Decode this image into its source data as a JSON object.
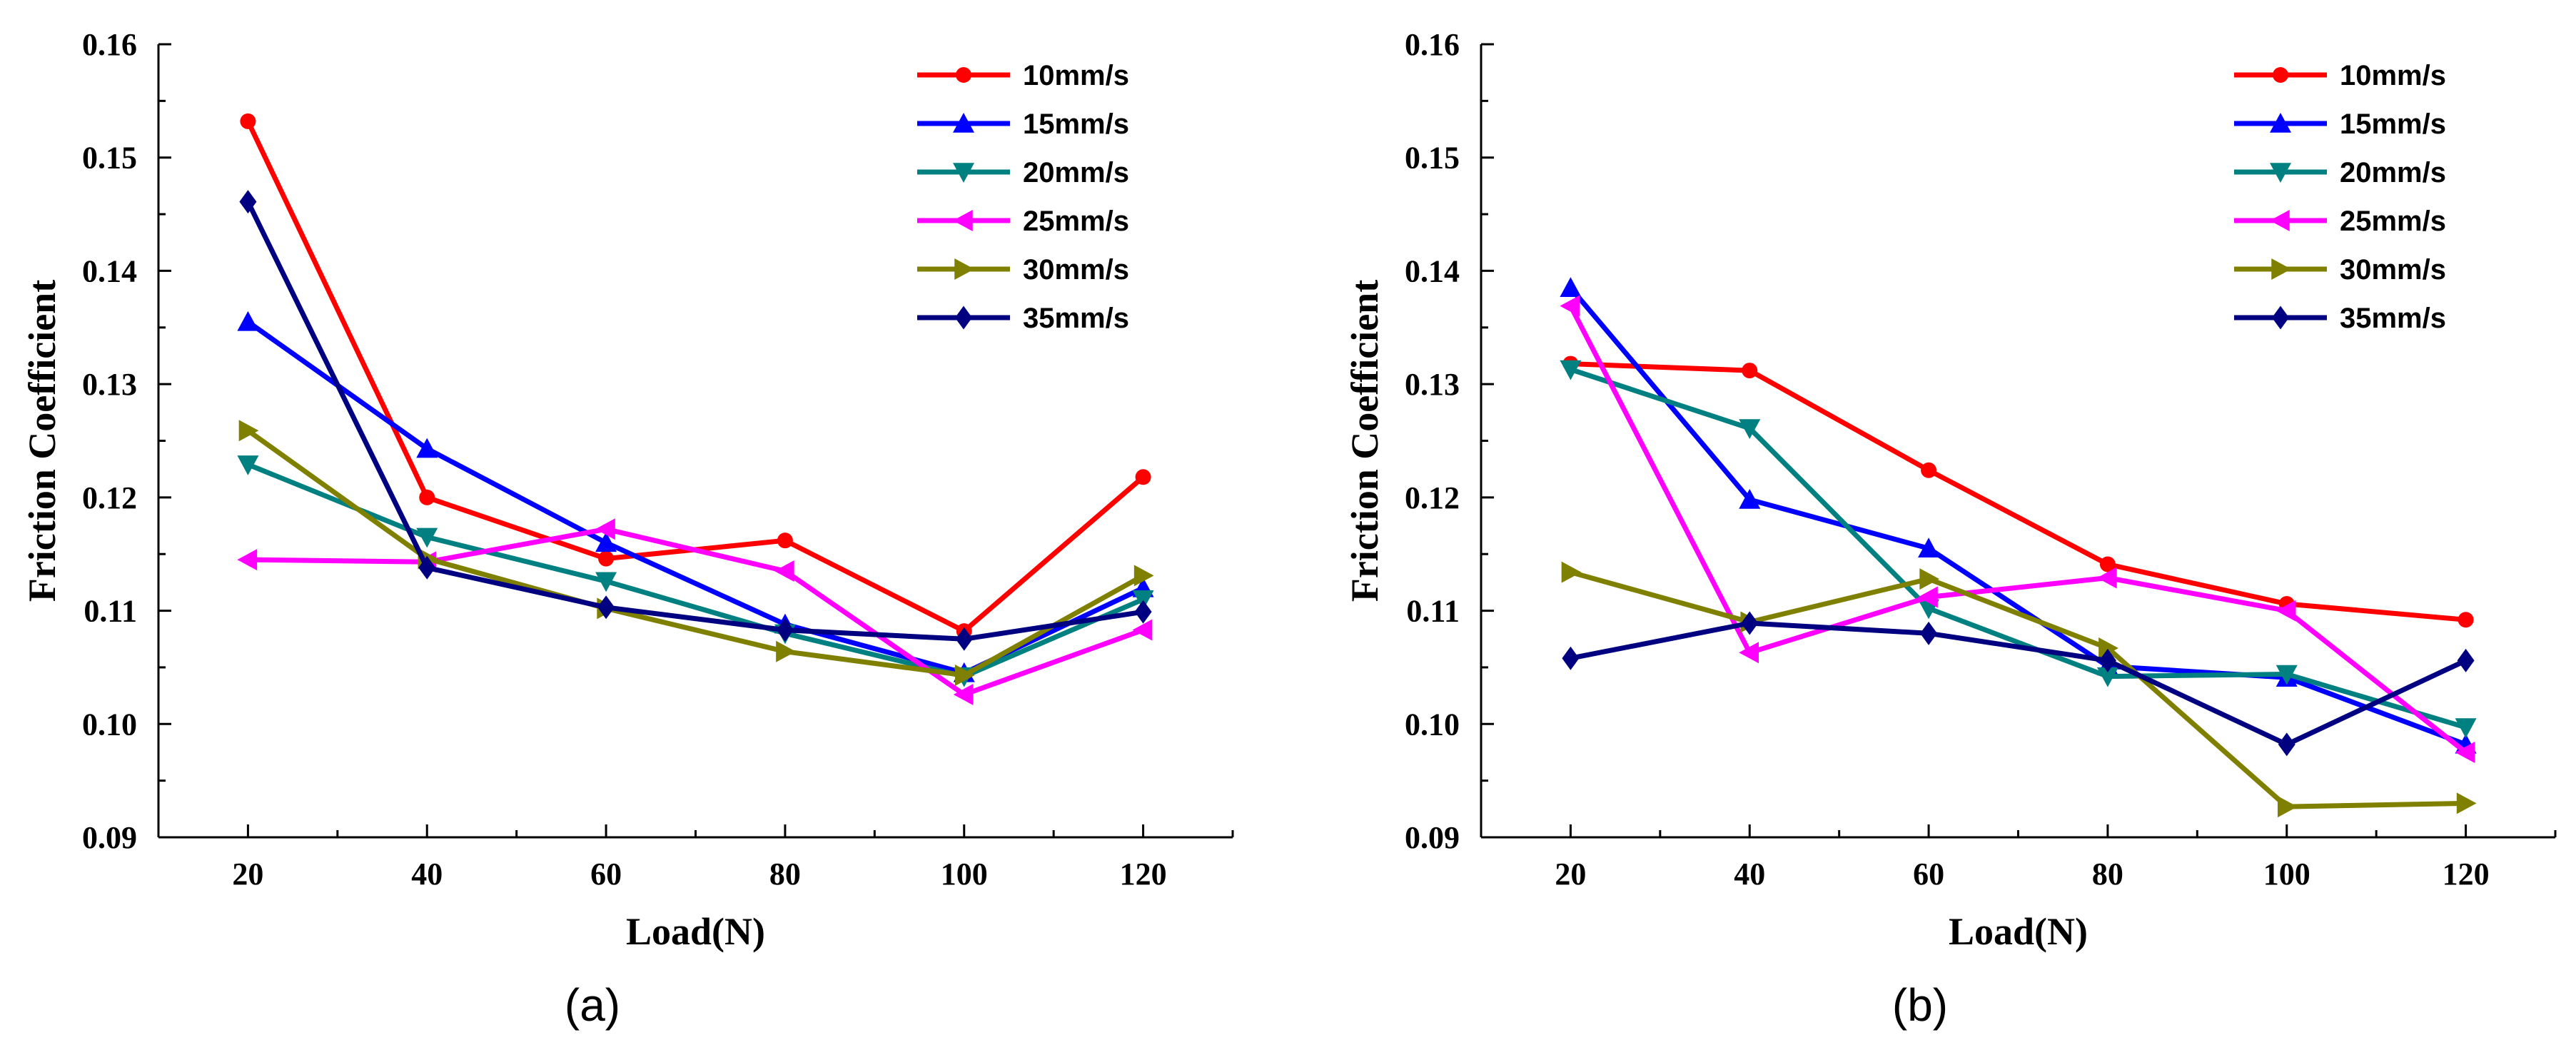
{
  "chart_data": [
    {
      "type": "line",
      "caption": "(a)",
      "xlabel": "Load(N)",
      "ylabel": "Friction Coefficient",
      "x": [
        20,
        40,
        60,
        80,
        100,
        120
      ],
      "x_tick_labels": [
        "20",
        "40",
        "60",
        "80",
        "100",
        "120"
      ],
      "xlim": [
        10,
        130
      ],
      "y_tick_labels": [
        "0.09",
        "0.10",
        "0.11",
        "0.12",
        "0.13",
        "0.14",
        "0.15",
        "0.16"
      ],
      "ylim": [
        0.09,
        0.16
      ],
      "legend_position": "top-right",
      "series": [
        {
          "name": "10mm/s",
          "color": "#ff0000",
          "marker": "circle",
          "values": [
            0.1532,
            0.12,
            0.1146,
            0.1162,
            0.1082,
            0.1218
          ]
        },
        {
          "name": "15mm/s",
          "color": "#0000ff",
          "marker": "triangle-up",
          "values": [
            0.1355,
            0.1243,
            0.116,
            0.1088,
            0.1045,
            0.112
          ]
        },
        {
          "name": "20mm/s",
          "color": "#008080",
          "marker": "triangle-down",
          "values": [
            0.1229,
            0.1165,
            0.1126,
            0.108,
            0.1042,
            0.111
          ]
        },
        {
          "name": "25mm/s",
          "color": "#ff00ff",
          "marker": "triangle-left",
          "values": [
            0.1145,
            0.1143,
            0.1172,
            0.1135,
            0.1026,
            0.1083
          ]
        },
        {
          "name": "30mm/s",
          "color": "#808000",
          "marker": "triangle-right",
          "values": [
            0.1259,
            0.1146,
            0.1102,
            0.1064,
            0.1043,
            0.1131
          ]
        },
        {
          "name": "35mm/s",
          "color": "#000080",
          "marker": "diamond",
          "values": [
            0.1461,
            0.1138,
            0.1103,
            0.1083,
            0.1075,
            0.1099
          ]
        }
      ]
    },
    {
      "type": "line",
      "caption": "(b)",
      "xlabel": "Load(N)",
      "ylabel": "Friction Coefficient",
      "x": [
        20,
        40,
        60,
        80,
        100,
        120
      ],
      "x_tick_labels": [
        "20",
        "40",
        "60",
        "80",
        "100",
        "120"
      ],
      "xlim": [
        10,
        130
      ],
      "y_tick_labels": [
        "0.09",
        "0.10",
        "0.11",
        "0.12",
        "0.13",
        "0.14",
        "0.15",
        "0.16"
      ],
      "ylim": [
        0.09,
        0.16
      ],
      "legend_position": "top-right",
      "series": [
        {
          "name": "10mm/s",
          "color": "#ff0000",
          "marker": "circle",
          "values": [
            0.1318,
            0.1312,
            0.1224,
            0.1141,
            0.1106,
            0.1092
          ]
        },
        {
          "name": "15mm/s",
          "color": "#0000ff",
          "marker": "triangle-up",
          "values": [
            0.1385,
            0.1198,
            0.1155,
            0.1051,
            0.1041,
            0.0982
          ]
        },
        {
          "name": "20mm/s",
          "color": "#008080",
          "marker": "triangle-down",
          "values": [
            0.1313,
            0.1261,
            0.1102,
            0.1042,
            0.1044,
            0.0997
          ]
        },
        {
          "name": "25mm/s",
          "color": "#ff00ff",
          "marker": "triangle-left",
          "values": [
            0.1369,
            0.1063,
            0.1112,
            0.1129,
            0.11,
            0.0975
          ]
        },
        {
          "name": "30mm/s",
          "color": "#808000",
          "marker": "triangle-right",
          "values": [
            0.1134,
            0.109,
            0.1128,
            0.1067,
            0.0927,
            0.093
          ]
        },
        {
          "name": "35mm/s",
          "color": "#000080",
          "marker": "diamond",
          "values": [
            0.1058,
            0.1089,
            0.108,
            0.1056,
            0.0982,
            0.1056
          ]
        }
      ]
    }
  ]
}
